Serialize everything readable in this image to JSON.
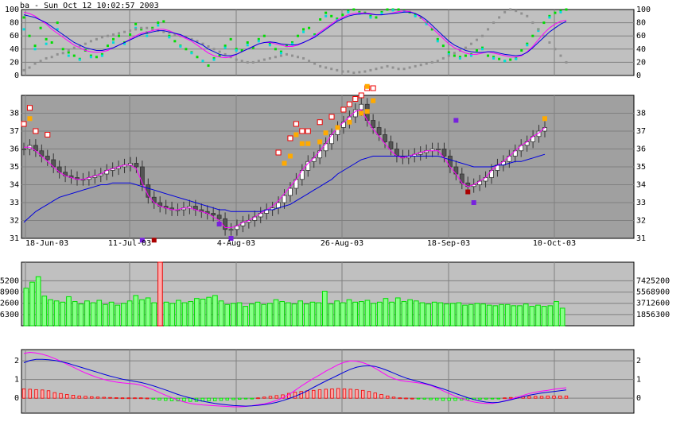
{
  "header": {
    "title": "ba - Sun Oct 12 10:02:57 2003"
  },
  "colors": {
    "panel_bg": "#c0c0c0",
    "price_bg": "#a0a0a0",
    "grid": "#808080",
    "magenta": "#ff00ff",
    "blue": "#0000dd",
    "green": "#00dd00",
    "cyan": "#00dddd",
    "gray_dot": "#909090",
    "orange": "#ffaa00",
    "red": "#ee0000",
    "dark_red": "#aa0000",
    "purple": "#7722dd",
    "volume_fill": "#88ff88"
  },
  "chart_data": [
    {
      "type": "line",
      "panel": "oscillator",
      "ylim": [
        0,
        100
      ],
      "yticks": [
        "0",
        "20",
        "40",
        "60",
        "80",
        "100"
      ],
      "series": [
        {
          "values": [
            96,
            94,
            90,
            84,
            78,
            70,
            64,
            58,
            52,
            46,
            42,
            38,
            36,
            35,
            36,
            38,
            42,
            46,
            50,
            55,
            60,
            64,
            66,
            68,
            70,
            70,
            68,
            64,
            60,
            56,
            52,
            46,
            40,
            34,
            30,
            28,
            27,
            28,
            32,
            36,
            40,
            44,
            48,
            50,
            50,
            48,
            46,
            44,
            44,
            46,
            50,
            54,
            60,
            66,
            72,
            78,
            84,
            88,
            92,
            94,
            95,
            95,
            94,
            92,
            92,
            93,
            95,
            97,
            98,
            97,
            94,
            88,
            80,
            72,
            64,
            56,
            48,
            42,
            38,
            34,
            32,
            32,
            34,
            36,
            34,
            32,
            30,
            28,
            28,
            30,
            36,
            44,
            54,
            64,
            72,
            78,
            82,
            84
          ]
        },
        {
          "values": [
            92,
            90,
            88,
            84,
            80,
            74,
            68,
            62,
            56,
            50,
            46,
            42,
            40,
            38,
            38,
            40,
            42,
            46,
            50,
            54,
            58,
            62,
            64,
            66,
            68,
            68,
            66,
            64,
            62,
            58,
            54,
            50,
            46,
            40,
            36,
            32,
            30,
            30,
            32,
            36,
            40,
            44,
            48,
            50,
            51,
            50,
            48,
            47,
            46,
            47,
            50,
            54,
            58,
            64,
            70,
            76,
            82,
            86,
            90,
            92,
            93,
            94,
            93,
            92,
            92,
            93,
            94,
            95,
            96,
            96,
            94,
            90,
            84,
            76,
            68,
            60,
            52,
            46,
            42,
            38,
            36,
            35,
            35,
            36,
            36,
            34,
            32,
            31,
            30,
            31,
            35,
            42,
            50,
            58,
            66,
            72,
            78,
            82
          ]
        },
        {
          "values": [
            88,
            60,
            45,
            72,
            55,
            50,
            80,
            40,
            35,
            30,
            25,
            38,
            30,
            28,
            32,
            45,
            55,
            60,
            50,
            62,
            78,
            70,
            65,
            72,
            80,
            82,
            60,
            52,
            45,
            40,
            35,
            28,
            22,
            15,
            26,
            30,
            45,
            55,
            40,
            38,
            50,
            42,
            55,
            60,
            48,
            40,
            36,
            45,
            50,
            60,
            70,
            72,
            62,
            85,
            95,
            90,
            86,
            92,
            98,
            100,
            96,
            95,
            90,
            88,
            96,
            100,
            100,
            100,
            98,
            96,
            92,
            88,
            80,
            70,
            55,
            45,
            35,
            30,
            28,
            30,
            32,
            38,
            42,
            30,
            28,
            25,
            22,
            24,
            26,
            38,
            48,
            60,
            70,
            80,
            90,
            95,
            98,
            100
          ]
        },
        {
          "values": [
            70,
            50,
            40,
            60,
            48,
            42,
            70,
            35,
            30,
            28,
            24,
            34,
            28,
            26,
            30,
            40,
            50,
            56,
            48,
            58,
            72,
            66,
            60,
            68,
            76,
            80,
            58,
            50,
            44,
            38,
            34,
            26,
            22,
            16,
            24,
            28,
            42,
            50,
            38,
            36,
            46,
            40,
            52,
            56,
            46,
            38,
            34,
            42,
            48,
            56,
            66,
            70,
            60,
            80,
            90,
            88,
            84,
            90,
            96,
            98,
            94,
            92,
            88,
            86,
            94,
            98,
            99,
            99,
            97,
            95,
            90,
            85,
            78,
            68,
            52,
            42,
            32,
            28,
            26,
            28,
            30,
            36,
            40,
            28,
            26,
            24,
            22,
            22,
            25,
            36,
            46,
            58,
            68,
            78,
            88,
            92,
            96,
            98
          ]
        },
        {
          "values": [
            8,
            12,
            18,
            22,
            26,
            28,
            32,
            34,
            38,
            42,
            45,
            48,
            52,
            55,
            58,
            60,
            62,
            64,
            66,
            68,
            70,
            72,
            72,
            70,
            68,
            66,
            65,
            62,
            60,
            58,
            55,
            52,
            48,
            44,
            40,
            36,
            32,
            28,
            24,
            22,
            20,
            20,
            22,
            24,
            26,
            28,
            30,
            32,
            30,
            28,
            26,
            22,
            18,
            14,
            12,
            10,
            8,
            6,
            6,
            4,
            5,
            6,
            8,
            10,
            12,
            14,
            12,
            10,
            10,
            12,
            14,
            16,
            18,
            20,
            22,
            26,
            30,
            34,
            38,
            42,
            48,
            54,
            60,
            70,
            80,
            88,
            96,
            100,
            98,
            94,
            90,
            80,
            70,
            60,
            50,
            40,
            30,
            20
          ]
        }
      ]
    },
    {
      "type": "candlestick",
      "panel": "price",
      "ylim": [
        31,
        39
      ],
      "yticks": [
        "31",
        "32",
        "33",
        "34",
        "35",
        "36",
        "37",
        "38"
      ],
      "xticks": [
        "18-Jun-03",
        "11-Jul-03",
        "4-Aug-03",
        "26-Aug-03",
        "18-Sep-03",
        "10-Oct-03"
      ],
      "close": [
        36.0,
        36.2,
        35.9,
        35.6,
        35.4,
        35.0,
        34.7,
        34.5,
        34.4,
        34.3,
        34.3,
        34.4,
        34.5,
        34.6,
        34.8,
        34.9,
        35.0,
        35.1,
        35.2,
        35.0,
        34.0,
        33.3,
        33.0,
        32.8,
        32.7,
        32.6,
        32.6,
        32.7,
        32.8,
        32.6,
        32.5,
        32.4,
        32.3,
        32.1,
        31.5,
        31.5,
        31.7,
        31.9,
        32.0,
        32.2,
        32.4,
        32.6,
        32.7,
        33.0,
        33.4,
        33.8,
        34.3,
        34.8,
        35.3,
        35.5,
        35.9,
        36.3,
        36.8,
        37.2,
        37.5,
        37.8,
        38.2,
        38.5,
        37.6,
        37.2,
        36.8,
        36.4,
        36.0,
        35.6,
        35.5,
        35.6,
        35.7,
        35.8,
        35.9,
        36.0,
        36.0,
        35.6,
        35.0,
        34.6,
        34.1,
        33.9,
        34.0,
        34.2,
        34.4,
        34.8,
        35.1,
        35.3,
        35.6,
        35.9,
        36.2,
        36.4,
        36.7,
        37.0,
        37.2
      ],
      "ma_fast": [
        36.1,
        36.1,
        35.9,
        35.6,
        35.3,
        35.0,
        34.7,
        34.5,
        34.4,
        34.3,
        34.3,
        34.4,
        34.5,
        34.6,
        34.8,
        34.9,
        35.0,
        35.1,
        35.1,
        34.9,
        34.1,
        33.4,
        33.0,
        32.8,
        32.7,
        32.6,
        32.6,
        32.7,
        32.7,
        32.6,
        32.5,
        32.4,
        32.2,
        32.0,
        31.6,
        31.6,
        31.7,
        31.9,
        32.0,
        32.2,
        32.4,
        32.6,
        32.8,
        33.1,
        33.5,
        33.9,
        34.3,
        34.8,
        35.2,
        35.5,
        35.9,
        36.3,
        36.8,
        37.2,
        37.5,
        37.8,
        38.1,
        38.2,
        37.6,
        37.1,
        36.7,
        36.3,
        35.9,
        35.6,
        35.5,
        35.6,
        35.7,
        35.8,
        35.9,
        35.9,
        35.9,
        35.5,
        35.0,
        34.6,
        34.1,
        33.9,
        34.0,
        34.2,
        34.4,
        34.8,
        35.1,
        35.3,
        35.6,
        35.9,
        36.2,
        36.4,
        36.7,
        36.9,
        37.2
      ],
      "ma_slow": [
        31.9,
        32.2,
        32.5,
        32.7,
        32.9,
        33.1,
        33.3,
        33.4,
        33.5,
        33.6,
        33.7,
        33.8,
        33.9,
        34.0,
        34.0,
        34.1,
        34.1,
        34.1,
        34.1,
        34.0,
        33.9,
        33.8,
        33.7,
        33.6,
        33.5,
        33.4,
        33.3,
        33.2,
        33.1,
        33.0,
        32.9,
        32.8,
        32.7,
        32.6,
        32.6,
        32.5,
        32.5,
        32.5,
        32.5,
        32.5,
        32.5,
        32.6,
        32.6,
        32.7,
        32.8,
        32.9,
        33.1,
        33.3,
        33.5,
        33.7,
        33.9,
        34.1,
        34.3,
        34.6,
        34.8,
        35.0,
        35.2,
        35.4,
        35.5,
        35.6,
        35.6,
        35.6,
        35.6,
        35.6,
        35.6,
        35.6,
        35.6,
        35.6,
        35.6,
        35.6,
        35.6,
        35.5,
        35.4,
        35.3,
        35.2,
        35.1,
        35.0,
        35.0,
        35.0,
        35.0,
        35.1,
        35.1,
        35.2,
        35.3,
        35.3,
        35.4,
        35.5,
        35.6,
        35.7
      ]
    },
    {
      "type": "bar",
      "panel": "volume",
      "yticks": [
        "1856300",
        "3712600",
        "5568900",
        "7425200"
      ],
      "values": [
        6200000,
        7200000,
        8100000,
        4900000,
        4300000,
        4100000,
        3900000,
        4800000,
        4000000,
        3600000,
        4100000,
        3800000,
        4200000,
        3500000,
        3900000,
        3400000,
        3700000,
        4100000,
        5000000,
        4300000,
        4600000,
        3800000,
        10500000,
        3900000,
        3700000,
        4200000,
        3800000,
        4000000,
        4500000,
        4400000,
        4700000,
        5000000,
        4100000,
        3500000,
        3700000,
        3800000,
        3200000,
        3600000,
        3900000,
        3500000,
        3700000,
        4300000,
        4000000,
        3800000,
        3600000,
        4100000,
        3600000,
        3900000,
        3800000,
        5700000,
        3600000,
        4100000,
        3800000,
        4300000,
        3900000,
        4000000,
        4200000,
        3700000,
        3900000,
        4500000,
        3900000,
        4600000,
        4000000,
        4300000,
        4100000,
        3800000,
        3600000,
        3900000,
        3800000,
        3600000,
        3700000,
        3800000,
        3400000,
        3500000,
        3700000,
        3600000,
        3400000,
        3300000,
        3500000,
        3500000,
        3300000,
        3300000,
        3600000,
        3200000,
        3400000,
        3200000,
        3300000,
        4000000,
        2900000
      ],
      "highlight_index": 22
    },
    {
      "type": "line",
      "panel": "macd",
      "ylim": [
        -0.8,
        2.6
      ],
      "yticks": [
        "0",
        "1",
        "2"
      ],
      "series": [
        {
          "values": [
            2.4,
            2.45,
            2.42,
            2.35,
            2.25,
            2.12,
            1.98,
            1.82,
            1.66,
            1.5,
            1.35,
            1.22,
            1.1,
            1.0,
            0.92,
            0.86,
            0.82,
            0.79,
            0.76,
            0.7,
            0.58,
            0.45,
            0.3,
            0.16,
            0.03,
            -0.1,
            -0.2,
            -0.28,
            -0.33,
            -0.36,
            -0.38,
            -0.4,
            -0.42,
            -0.44,
            -0.46,
            -0.46,
            -0.44,
            -0.4,
            -0.35,
            -0.3,
            -0.22,
            -0.12,
            0.02,
            0.2,
            0.42,
            0.65,
            0.86,
            1.06,
            1.25,
            1.45,
            1.62,
            1.8,
            1.92,
            2.0,
            1.98,
            1.9,
            1.78,
            1.6,
            1.4,
            1.2,
            1.05,
            0.95,
            0.9,
            0.86,
            0.82,
            0.76,
            0.68,
            0.55,
            0.4,
            0.25,
            0.1,
            -0.02,
            -0.12,
            -0.2,
            -0.25,
            -0.28,
            -0.28,
            -0.22,
            -0.14,
            -0.05,
            0.05,
            0.15,
            0.25,
            0.32,
            0.38,
            0.42,
            0.48,
            0.52,
            0.56
          ]
        },
        {
          "values": [
            1.9,
            2.02,
            2.08,
            2.08,
            2.06,
            2.02,
            1.96,
            1.88,
            1.78,
            1.68,
            1.58,
            1.48,
            1.38,
            1.28,
            1.18,
            1.1,
            1.02,
            0.96,
            0.9,
            0.84,
            0.76,
            0.66,
            0.55,
            0.44,
            0.32,
            0.2,
            0.1,
            0.01,
            -0.08,
            -0.16,
            -0.22,
            -0.28,
            -0.32,
            -0.36,
            -0.39,
            -0.41,
            -0.42,
            -0.41,
            -0.38,
            -0.34,
            -0.29,
            -0.22,
            -0.13,
            -0.02,
            0.1,
            0.24,
            0.4,
            0.58,
            0.75,
            0.92,
            1.08,
            1.24,
            1.4,
            1.55,
            1.66,
            1.72,
            1.74,
            1.7,
            1.6,
            1.48,
            1.34,
            1.2,
            1.08,
            0.98,
            0.89,
            0.8,
            0.71,
            0.6,
            0.5,
            0.38,
            0.26,
            0.14,
            0.03,
            -0.07,
            -0.15,
            -0.21,
            -0.24,
            -0.22,
            -0.16,
            -0.08,
            0.0,
            0.08,
            0.16,
            0.22,
            0.28,
            0.32,
            0.36,
            0.4,
            0.44
          ]
        },
        {
          "values": [
            0.5,
            0.48,
            0.46,
            0.44,
            0.4,
            0.3,
            0.25,
            0.2,
            0.16,
            0.12,
            0.1,
            0.08,
            0.06,
            0.05,
            0.04,
            0.03,
            0.02,
            0.02,
            0.02,
            0.02,
            0.01,
            -0.05,
            -0.1,
            -0.12,
            -0.14,
            -0.15,
            -0.16,
            -0.17,
            -0.17,
            -0.16,
            -0.15,
            -0.14,
            -0.12,
            -0.1,
            -0.08,
            -0.06,
            -0.04,
            -0.02,
            0.02,
            0.06,
            0.1,
            0.14,
            0.18,
            0.26,
            0.32,
            0.36,
            0.4,
            0.42,
            0.45,
            0.48,
            0.5,
            0.52,
            0.5,
            0.48,
            0.46,
            0.42,
            0.36,
            0.28,
            0.2,
            0.12,
            0.06,
            0.02,
            0.01,
            0.0,
            -0.02,
            -0.05,
            -0.08,
            -0.1,
            -0.12,
            -0.12,
            -0.12,
            -0.1,
            -0.09,
            -0.07,
            -0.06,
            -0.05,
            -0.04,
            -0.03,
            0.02,
            0.04,
            0.05,
            0.07,
            0.09,
            0.1,
            0.1,
            0.12,
            0.12,
            0.12,
            0.12
          ]
        }
      ]
    }
  ]
}
